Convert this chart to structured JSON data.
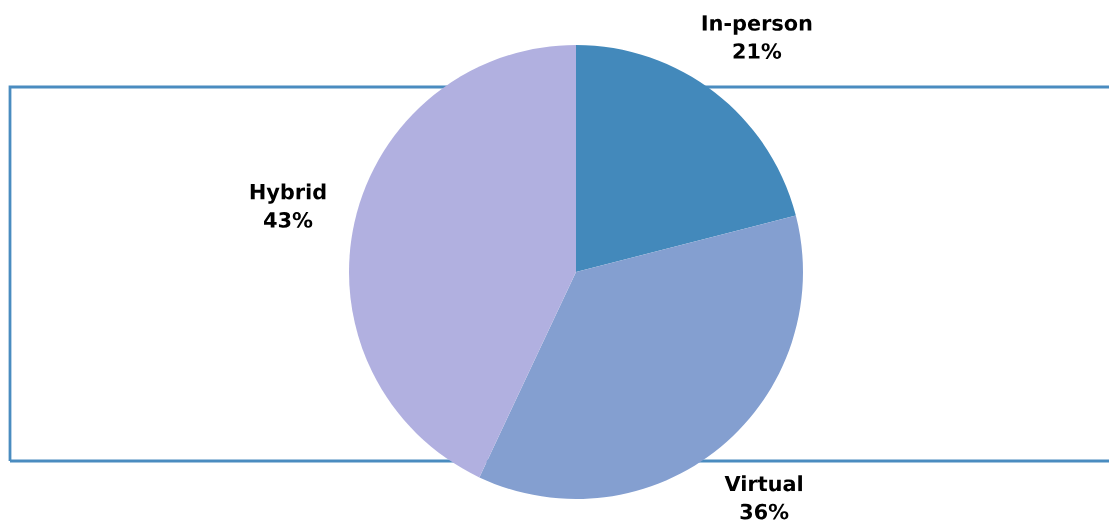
{
  "chart_data": {
    "type": "pie",
    "categories": [
      "In-person",
      "Virtual",
      "Hybrid"
    ],
    "values": [
      21,
      36,
      43
    ],
    "value_labels": [
      "21%",
      "36%",
      "43%"
    ],
    "colors": [
      "#4389bb",
      "#849fd0",
      "#b1b0e0"
    ],
    "legend": false
  }
}
